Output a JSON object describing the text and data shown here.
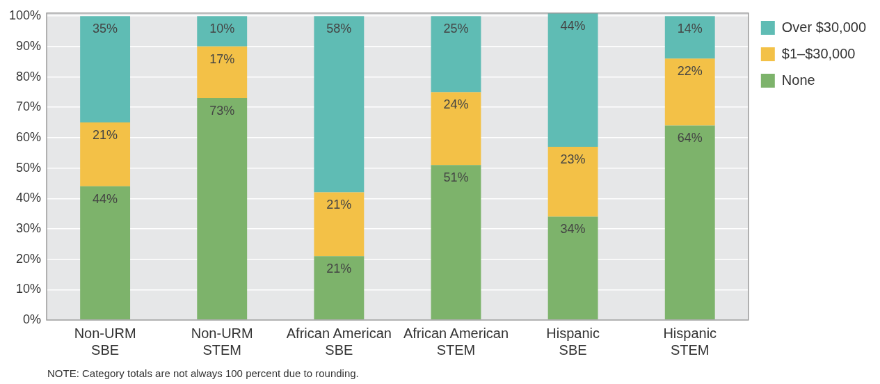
{
  "chart_data": {
    "type": "bar",
    "stacked": true,
    "categories": [
      "Non-URM\nSBE",
      "Non-URM\nSTEM",
      "African American\nSBE",
      "African American\nSTEM",
      "Hispanic\nSBE",
      "Hispanic\nSTEM"
    ],
    "series": [
      {
        "name": "None",
        "color": "#7db36b",
        "values": [
          44,
          73,
          21,
          51,
          34,
          64
        ],
        "value_labels": [
          "44%",
          "73%",
          "21%",
          "51%",
          "34%",
          "64%"
        ]
      },
      {
        "name": "$1–$30,000",
        "color": "#f3c147",
        "values": [
          21,
          17,
          21,
          24,
          23,
          22
        ],
        "value_labels": [
          "21%",
          "17%",
          "21%",
          "24%",
          "23%",
          "22%"
        ]
      },
      {
        "name": "Over $30,000",
        "color": "#5fbcb4",
        "values": [
          35,
          10,
          58,
          25,
          44,
          14
        ],
        "value_labels": [
          "35%",
          "10%",
          "58%",
          "25%",
          "44%",
          "14%"
        ]
      }
    ],
    "ylim": [
      0,
      101
    ],
    "yticks": [
      {
        "value": 0,
        "label": "0%"
      },
      {
        "value": 10,
        "label": "10%"
      },
      {
        "value": 20,
        "label": "20%"
      },
      {
        "value": 30,
        "label": "30%"
      },
      {
        "value": 40,
        "label": "40%"
      },
      {
        "value": 50,
        "label": "50%"
      },
      {
        "value": 60,
        "label": "60%"
      },
      {
        "value": 70,
        "label": "70%"
      },
      {
        "value": 80,
        "label": "80%"
      },
      {
        "value": 90,
        "label": "90%"
      },
      {
        "value": 100,
        "label": "100%"
      }
    ],
    "grid": "y",
    "legend": "top right",
    "annotations": [
      "NOTE: Category totals are not always 100 percent due to rounding."
    ]
  }
}
